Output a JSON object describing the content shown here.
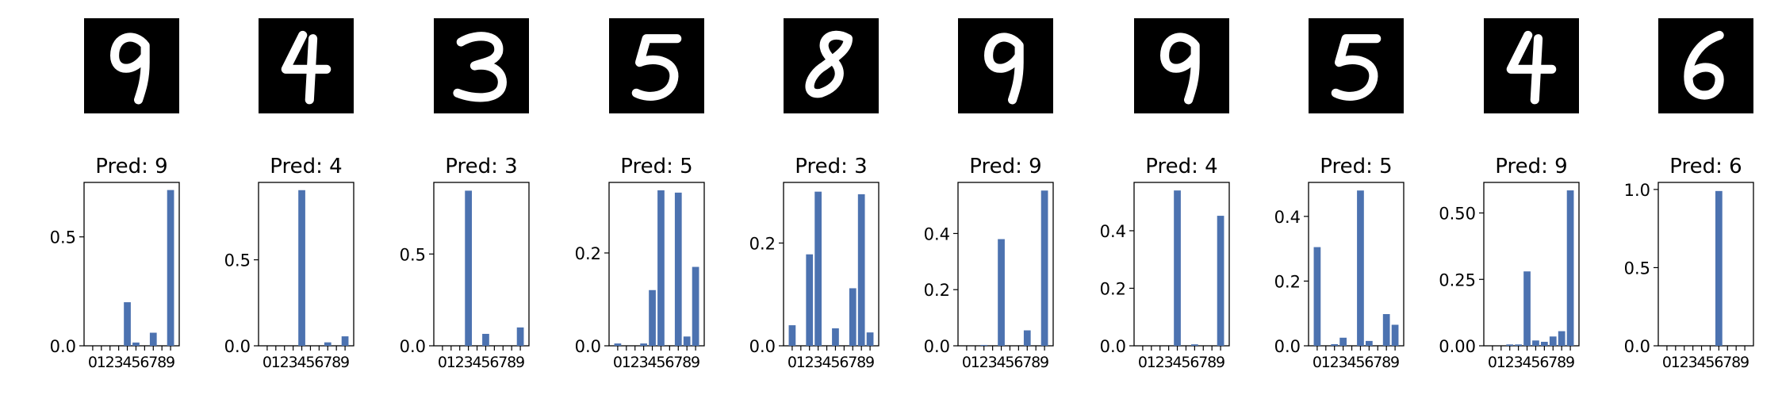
{
  "figure": {
    "panel_title_prefix": "Pred: ",
    "bar_color": "#4c72b0",
    "digit_image_bg": "#000000",
    "digit_stroke": "#ffffff"
  },
  "chart_data": [
    {
      "type": "bar",
      "digit_shown": "9",
      "title": "Pred: 9",
      "categories": [
        "0",
        "1",
        "2",
        "3",
        "4",
        "5",
        "6",
        "7",
        "8",
        "9"
      ],
      "values": [
        0.0,
        0.0,
        0.0,
        0.0,
        0.2,
        0.015,
        0.0,
        0.06,
        0.0,
        0.715
      ],
      "ylim": [
        0,
        0.75
      ],
      "yticks": [
        0.0,
        0.5
      ],
      "ytick_labels": [
        "0.0",
        "0.5"
      ]
    },
    {
      "type": "bar",
      "digit_shown": "4",
      "title": "Pred: 4",
      "categories": [
        "0",
        "1",
        "2",
        "3",
        "4",
        "5",
        "6",
        "7",
        "8",
        "9"
      ],
      "values": [
        0.0,
        0.0,
        0.0,
        0.0,
        0.905,
        0.0,
        0.0,
        0.02,
        0.0,
        0.055
      ],
      "ylim": [
        0,
        0.95
      ],
      "yticks": [
        0.0,
        0.5
      ],
      "ytick_labels": [
        "0.0",
        "0.5"
      ]
    },
    {
      "type": "bar",
      "digit_shown": "3",
      "title": "Pred: 3",
      "categories": [
        "0",
        "1",
        "2",
        "3",
        "4",
        "5",
        "6",
        "7",
        "8",
        "9"
      ],
      "values": [
        0.0,
        0.0,
        0.0,
        0.845,
        0.0,
        0.065,
        0.0,
        0.0,
        0.0,
        0.1
      ],
      "ylim": [
        0,
        0.89
      ],
      "yticks": [
        0.0,
        0.5
      ],
      "ytick_labels": [
        "0.0",
        "0.5"
      ]
    },
    {
      "type": "bar",
      "digit_shown": "5",
      "title": "Pred: 5",
      "categories": [
        "0",
        "1",
        "2",
        "3",
        "4",
        "5",
        "6",
        "7",
        "8",
        "9"
      ],
      "values": [
        0.005,
        0.0,
        0.0,
        0.005,
        0.12,
        0.335,
        0.0,
        0.33,
        0.02,
        0.17
      ],
      "ylim": [
        0,
        0.352
      ],
      "yticks": [
        0.0,
        0.2
      ],
      "ytick_labels": [
        "0.0",
        "0.2"
      ]
    },
    {
      "type": "bar",
      "digit_shown": "8",
      "title": "Pred: 3",
      "categories": [
        "0",
        "1",
        "2",
        "3",
        "4",
        "5",
        "6",
        "7",
        "8",
        "9"
      ],
      "values": [
        0.04,
        0.0,
        0.178,
        0.3,
        0.0,
        0.034,
        0.0,
        0.112,
        0.295,
        0.026
      ],
      "ylim": [
        0,
        0.318
      ],
      "yticks": [
        0.0,
        0.2
      ],
      "ytick_labels": [
        "0.0",
        "0.2"
      ]
    },
    {
      "type": "bar",
      "digit_shown": "9",
      "title": "Pred: 9",
      "categories": [
        "0",
        "1",
        "2",
        "3",
        "4",
        "5",
        "6",
        "7",
        "8",
        "9"
      ],
      "values": [
        0.0,
        0.0,
        0.003,
        0.0,
        0.38,
        0.0,
        0.0,
        0.055,
        0.0,
        0.553
      ],
      "ylim": [
        0,
        0.582
      ],
      "yticks": [
        0.0,
        0.2,
        0.4
      ],
      "ytick_labels": [
        "0.0",
        "0.2",
        "0.4"
      ]
    },
    {
      "type": "bar",
      "digit_shown": "9",
      "title": "Pred: 4",
      "categories": [
        "0",
        "1",
        "2",
        "3",
        "4",
        "5",
        "6",
        "7",
        "8",
        "9"
      ],
      "values": [
        0.0,
        0.0,
        0.0,
        0.0,
        0.54,
        0.0,
        0.005,
        0.0,
        0.0,
        0.452
      ],
      "ylim": [
        0,
        0.568
      ],
      "yticks": [
        0.0,
        0.2,
        0.4
      ],
      "ytick_labels": [
        "0.0",
        "0.2",
        "0.4"
      ]
    },
    {
      "type": "bar",
      "digit_shown": "5",
      "title": "Pred: 5",
      "categories": [
        "0",
        "1",
        "2",
        "3",
        "4",
        "5",
        "6",
        "7",
        "8",
        "9"
      ],
      "values": [
        0.305,
        0.0,
        0.005,
        0.025,
        0.0,
        0.48,
        0.015,
        0.0,
        0.098,
        0.065
      ],
      "ylim": [
        0,
        0.505
      ],
      "yticks": [
        0.0,
        0.2,
        0.4
      ],
      "ytick_labels": [
        "0.0",
        "0.2",
        "0.4"
      ]
    },
    {
      "type": "bar",
      "digit_shown": "4",
      "title": "Pred: 9",
      "categories": [
        "0",
        "1",
        "2",
        "3",
        "4",
        "5",
        "6",
        "7",
        "8",
        "9"
      ],
      "values": [
        0.0,
        0.0,
        0.005,
        0.005,
        0.28,
        0.02,
        0.015,
        0.035,
        0.055,
        0.585
      ],
      "ylim": [
        0,
        0.615
      ],
      "yticks": [
        0.0,
        0.25,
        0.5
      ],
      "ytick_labels": [
        "0.00",
        "0.25",
        "0.50"
      ]
    },
    {
      "type": "bar",
      "digit_shown": "6",
      "title": "Pred: 6",
      "categories": [
        "0",
        "1",
        "2",
        "3",
        "4",
        "5",
        "6",
        "7",
        "8",
        "9"
      ],
      "values": [
        0.0,
        0.0,
        0.0,
        0.0,
        0.0,
        0.0,
        0.99,
        0.0,
        0.0,
        0.0
      ],
      "ylim": [
        0,
        1.045
      ],
      "yticks": [
        0.0,
        0.5,
        1.0
      ],
      "ytick_labels": [
        "0.0",
        "0.5",
        "1.0"
      ]
    }
  ]
}
